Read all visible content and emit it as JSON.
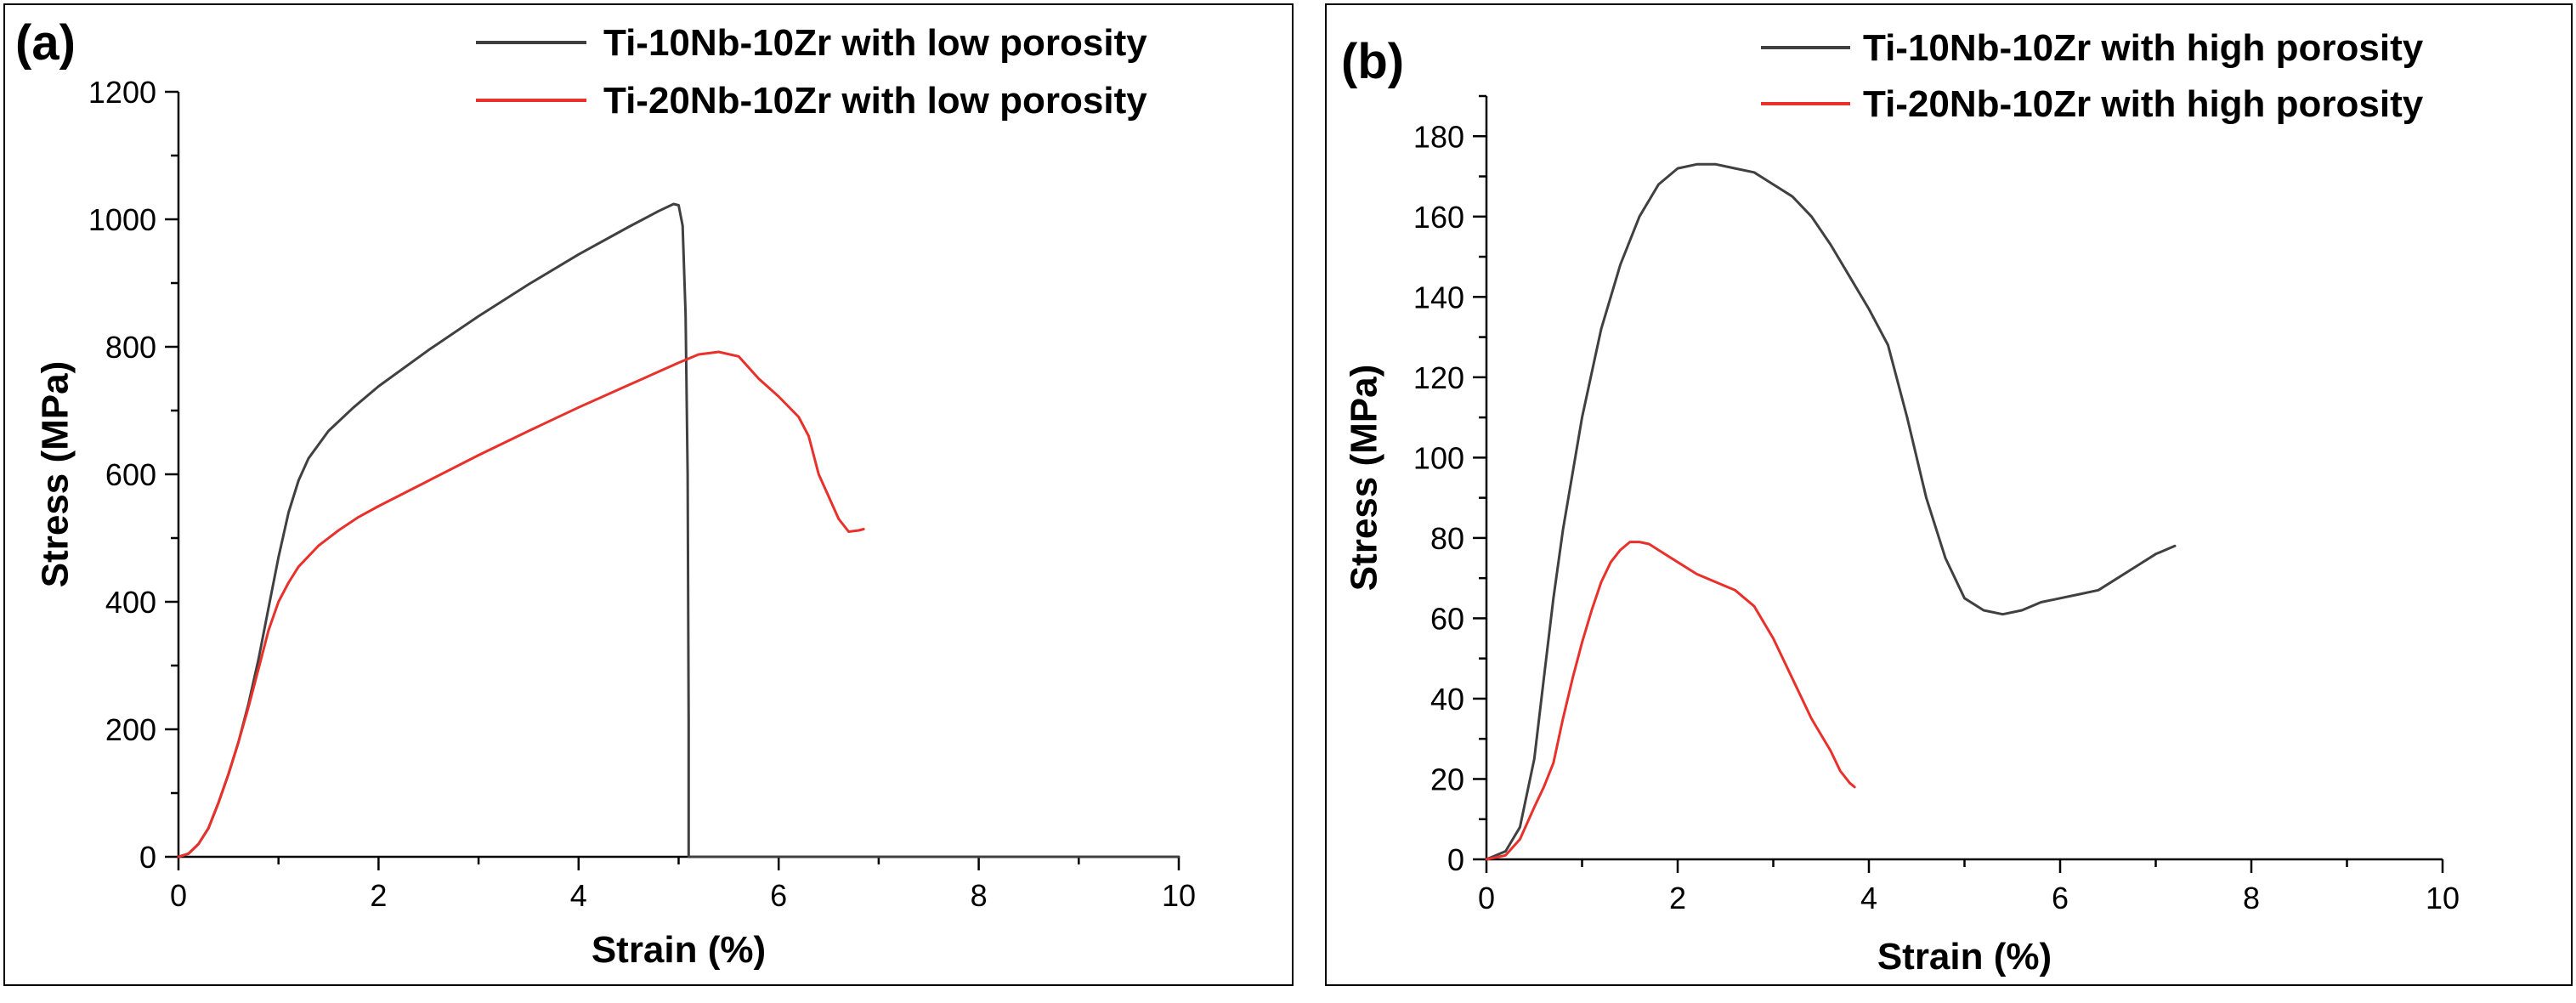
{
  "chart_data": [
    {
      "type": "line",
      "panel_label": "(a)",
      "xlabel": "Strain (%)",
      "ylabel": "Stress (MPa)",
      "xlim": [
        0,
        10
      ],
      "ylim": [
        0,
        1200
      ],
      "xticks": [
        0,
        2,
        4,
        6,
        8,
        10
      ],
      "yticks": [
        0,
        200,
        400,
        600,
        800,
        1000,
        1200
      ],
      "legend_position": "top-right",
      "grid": false,
      "series": [
        {
          "name": "Ti-10Nb-10Zr with low porosity",
          "color": "#404040",
          "points": [
            [
              0,
              0
            ],
            [
              0.1,
              5
            ],
            [
              0.2,
              20
            ],
            [
              0.3,
              45
            ],
            [
              0.4,
              85
            ],
            [
              0.5,
              130
            ],
            [
              0.6,
              180
            ],
            [
              0.7,
              240
            ],
            [
              0.8,
              310
            ],
            [
              0.9,
              390
            ],
            [
              1.0,
              470
            ],
            [
              1.1,
              540
            ],
            [
              1.2,
              590
            ],
            [
              1.3,
              625
            ],
            [
              1.5,
              668
            ],
            [
              1.75,
              705
            ],
            [
              2.0,
              738
            ],
            [
              2.5,
              795
            ],
            [
              3.0,
              848
            ],
            [
              3.5,
              898
            ],
            [
              4.0,
              945
            ],
            [
              4.5,
              988
            ],
            [
              4.8,
              1013
            ],
            [
              4.95,
              1024
            ],
            [
              5.0,
              1022
            ],
            [
              5.04,
              990
            ],
            [
              5.07,
              850
            ],
            [
              5.09,
              600
            ],
            [
              5.1,
              210
            ],
            [
              5.1,
              0
            ],
            [
              10,
              0
            ]
          ]
        },
        {
          "name": "Ti-20Nb-10Zr with low porosity",
          "color": "#e8312b",
          "points": [
            [
              0,
              0
            ],
            [
              0.1,
              5
            ],
            [
              0.2,
              20
            ],
            [
              0.3,
              45
            ],
            [
              0.4,
              85
            ],
            [
              0.5,
              130
            ],
            [
              0.6,
              180
            ],
            [
              0.7,
              235
            ],
            [
              0.8,
              295
            ],
            [
              0.9,
              355
            ],
            [
              1.0,
              400
            ],
            [
              1.1,
              430
            ],
            [
              1.2,
              455
            ],
            [
              1.4,
              488
            ],
            [
              1.6,
              512
            ],
            [
              1.8,
              533
            ],
            [
              2.0,
              550
            ],
            [
              2.5,
              590
            ],
            [
              3.0,
              630
            ],
            [
              3.5,
              668
            ],
            [
              4.0,
              705
            ],
            [
              4.5,
              740
            ],
            [
              5.0,
              775
            ],
            [
              5.2,
              788
            ],
            [
              5.4,
              792
            ],
            [
              5.6,
              785
            ],
            [
              5.8,
              750
            ],
            [
              6.0,
              722
            ],
            [
              6.2,
              690
            ],
            [
              6.3,
              660
            ],
            [
              6.4,
              600
            ],
            [
              6.5,
              565
            ],
            [
              6.6,
              530
            ],
            [
              6.7,
              510
            ],
            [
              6.8,
              512
            ],
            [
              6.85,
              514
            ]
          ]
        }
      ]
    },
    {
      "type": "line",
      "panel_label": "(b)",
      "xlabel": "Strain (%)",
      "ylabel": "Stress (MPa)",
      "xlim": [
        0,
        10
      ],
      "ylim": [
        0,
        190
      ],
      "xticks": [
        0,
        2,
        4,
        6,
        8,
        10
      ],
      "yticks": [
        0,
        20,
        40,
        60,
        80,
        100,
        120,
        140,
        160,
        180
      ],
      "legend_position": "top-right",
      "grid": false,
      "series": [
        {
          "name": "Ti-10Nb-10Zr with high porosity",
          "color": "#404040",
          "points": [
            [
              0,
              0
            ],
            [
              0.2,
              2
            ],
            [
              0.35,
              8
            ],
            [
              0.5,
              25
            ],
            [
              0.6,
              45
            ],
            [
              0.7,
              65
            ],
            [
              0.8,
              82
            ],
            [
              1.0,
              110
            ],
            [
              1.2,
              132
            ],
            [
              1.4,
              148
            ],
            [
              1.6,
              160
            ],
            [
              1.8,
              168
            ],
            [
              2.0,
              172
            ],
            [
              2.2,
              173
            ],
            [
              2.4,
              173
            ],
            [
              2.6,
              172
            ],
            [
              2.8,
              171
            ],
            [
              3.0,
              168
            ],
            [
              3.2,
              165
            ],
            [
              3.4,
              160
            ],
            [
              3.6,
              153
            ],
            [
              3.8,
              145
            ],
            [
              4.0,
              137
            ],
            [
              4.2,
              128
            ],
            [
              4.4,
              110
            ],
            [
              4.6,
              90
            ],
            [
              4.8,
              75
            ],
            [
              5.0,
              65
            ],
            [
              5.2,
              62
            ],
            [
              5.4,
              61
            ],
            [
              5.6,
              62
            ],
            [
              5.8,
              64
            ],
            [
              6.0,
              65
            ],
            [
              6.2,
              66
            ],
            [
              6.4,
              67
            ],
            [
              6.6,
              70
            ],
            [
              6.8,
              73
            ],
            [
              7.0,
              76
            ],
            [
              7.2,
              78
            ]
          ]
        },
        {
          "name": "Ti-20Nb-10Zr with high porosity",
          "color": "#e8312b",
          "points": [
            [
              0,
              0
            ],
            [
              0.2,
              1
            ],
            [
              0.35,
              5
            ],
            [
              0.5,
              13
            ],
            [
              0.6,
              18
            ],
            [
              0.7,
              24
            ],
            [
              0.8,
              35
            ],
            [
              0.9,
              45
            ],
            [
              1.0,
              54
            ],
            [
              1.1,
              62
            ],
            [
              1.2,
              69
            ],
            [
              1.3,
              74
            ],
            [
              1.4,
              77
            ],
            [
              1.5,
              79
            ],
            [
              1.6,
              79
            ],
            [
              1.7,
              78.5
            ],
            [
              1.8,
              77
            ],
            [
              2.0,
              74
            ],
            [
              2.2,
              71
            ],
            [
              2.4,
              69
            ],
            [
              2.6,
              67
            ],
            [
              2.8,
              63
            ],
            [
              3.0,
              55
            ],
            [
              3.2,
              45
            ],
            [
              3.4,
              35
            ],
            [
              3.6,
              27
            ],
            [
              3.7,
              22
            ],
            [
              3.8,
              19
            ],
            [
              3.85,
              18
            ]
          ]
        }
      ]
    }
  ]
}
